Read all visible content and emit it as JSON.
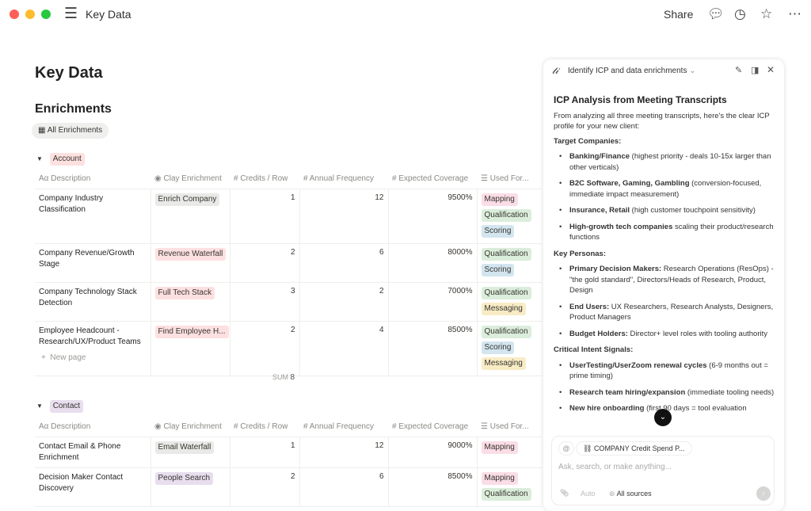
{
  "window": {
    "title": "Key Data",
    "share": "Share",
    "icons": [
      "menu-icon",
      "comment-icon",
      "clock-icon",
      "star-icon",
      "more-icon"
    ]
  },
  "page": {
    "title": "Key Data",
    "section_title": "Enrichments",
    "view_label": "All Enrichments"
  },
  "columns": [
    "Description",
    "Clay Enrichment",
    "Credits / Row",
    "Annual Frequency",
    "Expected Coverage",
    "Used For..."
  ],
  "colors": {
    "tag_mapping": "#fadde6",
    "tag_qualification": "#dbeddb",
    "tag_scoring": "#d3e5ef",
    "tag_messaging": "#f8ecc5",
    "tag_red": "#fde0e0",
    "tag_gray": "#e9e9e7",
    "tag_purple": "#e8deee"
  },
  "groups": [
    {
      "name": "Account",
      "rows": [
        {
          "description": "Company Industry Classification",
          "enrichment": "Enrich Company",
          "credits": "1",
          "frequency": "12",
          "coverage": "9500%",
          "used_for": [
            "Mapping",
            "Qualification",
            "Scoring"
          ]
        },
        {
          "description": "Company Revenue/Growth Stage",
          "enrichment": "Revenue Waterfall",
          "credits": "2",
          "frequency": "6",
          "coverage": "8000%",
          "used_for": [
            "Qualification",
            "Scoring"
          ]
        },
        {
          "description": "Company Technology Stack Detection",
          "enrichment": "Full Tech Stack",
          "credits": "3",
          "frequency": "2",
          "coverage": "7000%",
          "used_for": [
            "Qualification",
            "Messaging"
          ]
        },
        {
          "description": "Employee Headcount - Research/UX/Product Teams",
          "enrichment": "Find Employee H...",
          "credits": "2",
          "frequency": "4",
          "coverage": "8500%",
          "used_for": [
            "Qualification",
            "Scoring",
            "Messaging"
          ]
        }
      ],
      "new_page": "New page",
      "sum_label": "SUM",
      "sum_value": "8"
    },
    {
      "name": "Contact",
      "rows": [
        {
          "description": "Contact Email & Phone Enrichment",
          "enrichment": "Email Waterfall",
          "credits": "1",
          "frequency": "12",
          "coverage": "9000%",
          "used_for": [
            "Mapping"
          ]
        },
        {
          "description": "Decision Maker Contact Discovery",
          "enrichment": "People Search",
          "credits": "2",
          "frequency": "6",
          "coverage": "8500%",
          "used_for": [
            "Mapping",
            "Qualification"
          ]
        }
      ]
    }
  ],
  "assistant": {
    "thread_title": "Identify ICP and data enrichments",
    "heading": "ICP Analysis from Meeting Transcripts",
    "intro": "From analyzing all three meeting transcripts, here's the clear ICP profile for your new client:",
    "sections": [
      {
        "title": "Target Companies:",
        "items": [
          {
            "bold": "Banking/Finance",
            "text": " (highest priority - deals 10-15x larger than other verticals)"
          },
          {
            "bold": "B2C Software, Gaming, Gambling",
            "text": " (conversion-focused, immediate impact measurement)"
          },
          {
            "bold": "Insurance, Retail",
            "text": " (high customer touchpoint sensitivity)"
          },
          {
            "bold": "High-growth tech companies",
            "text": " scaling their product/research functions"
          }
        ]
      },
      {
        "title": "Key Personas:",
        "items": [
          {
            "bold": "Primary Decision Makers:",
            "text": " Research Operations (ResOps) - \"the gold standard\", Directors/Heads of Research, Product, Design"
          },
          {
            "bold": "End Users:",
            "text": " UX Researchers, Research Analysts, Designers, Product Managers"
          },
          {
            "bold": "Budget Holders:",
            "text": " Director+ level roles with tooling authority"
          }
        ]
      },
      {
        "title": "Critical Intent Signals:",
        "items": [
          {
            "bold": "UserTesting/UserZoom renewal cycles",
            "text": " (6-9 months out = prime timing)"
          },
          {
            "bold": "Research team hiring/expansion",
            "text": " (immediate tooling needs)"
          },
          {
            "bold": "New hire onboarding",
            "text": " (first 90 days = tool evaluation"
          }
        ]
      }
    ],
    "context_chip": "COMPANY Credit Spend P...",
    "input_placeholder": "Ask, search, or make anything...",
    "mode": "Auto",
    "sources": "All sources"
  }
}
